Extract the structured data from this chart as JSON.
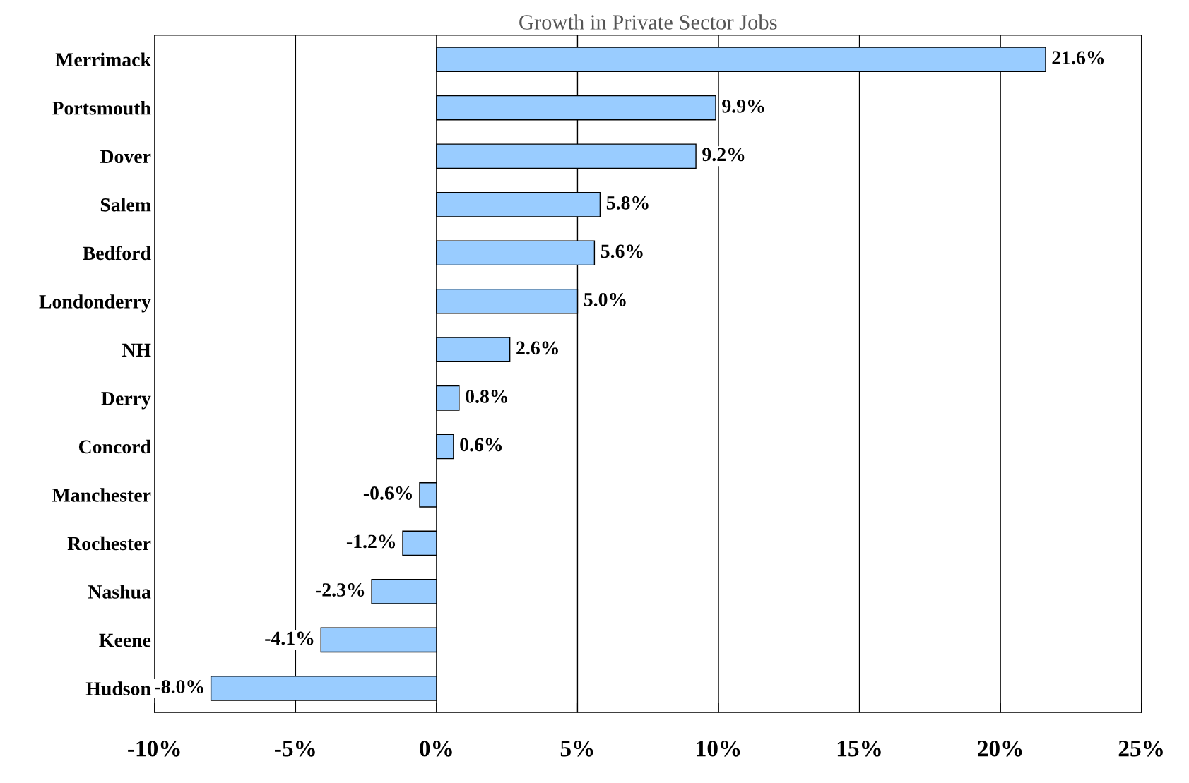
{
  "chart_data": {
    "type": "bar",
    "orientation": "horizontal",
    "title": "Growth in Private Sector Jobs",
    "categories": [
      "Merrimack",
      "Portsmouth",
      "Dover",
      "Salem",
      "Bedford",
      "Londonderry",
      "NH",
      "Derry",
      "Concord",
      "Manchester",
      "Rochester",
      "Nashua",
      "Keene",
      "Hudson"
    ],
    "values": [
      21.6,
      9.9,
      9.2,
      5.8,
      5.6,
      5.0,
      2.6,
      0.8,
      0.6,
      -0.6,
      -1.2,
      -2.3,
      -4.1,
      -8.0
    ],
    "value_labels": [
      "21.6%",
      "9.9%",
      "9.2%",
      "5.8%",
      "5.6%",
      "5.0%",
      "2.6%",
      "0.8%",
      "0.6%",
      "-0.6%",
      "-1.2%",
      "-2.3%",
      "-4.1%",
      "-8.0%"
    ],
    "color": "#99ccff",
    "xlim": [
      -10,
      25
    ],
    "xticks": [
      {
        "value": -10,
        "label": "-10%"
      },
      {
        "value": -5,
        "label": "-5%"
      },
      {
        "value": 0,
        "label": "0%"
      },
      {
        "value": 5,
        "label": "5%"
      },
      {
        "value": 10,
        "label": "10%"
      },
      {
        "value": 15,
        "label": "15%"
      },
      {
        "value": 20,
        "label": "20%"
      },
      {
        "value": 25,
        "label": "25%"
      }
    ],
    "grid": "x",
    "legend": false
  }
}
